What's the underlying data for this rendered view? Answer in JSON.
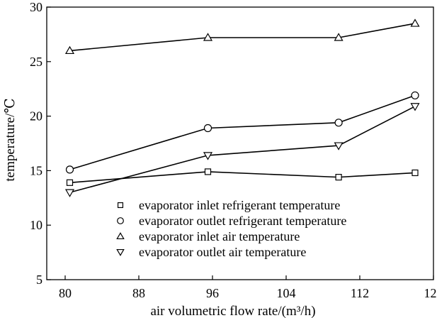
{
  "chart_data": {
    "type": "line",
    "xlabel": "air volumetric flow rate/(m³/h)",
    "ylabel": "temperature/℃",
    "xlim": [
      78,
      120
    ],
    "ylim": [
      5,
      30
    ],
    "xticks": [
      80,
      88,
      96,
      104,
      112,
      120
    ],
    "yticks": [
      5,
      10,
      15,
      20,
      25,
      30
    ],
    "x": [
      80.5,
      95.5,
      109.7,
      118
    ],
    "grid": false,
    "legend_position": "lower-right",
    "series": [
      {
        "name": "evaporator inlet refrigerant temperature",
        "marker": "square",
        "values": [
          13.9,
          14.9,
          14.4,
          14.8
        ]
      },
      {
        "name": "evaporator outlet refrigerant temperature",
        "marker": "circle",
        "values": [
          15.1,
          18.9,
          19.4,
          21.9
        ]
      },
      {
        "name": "evaporator inlet air temperature",
        "marker": "triangle-up",
        "values": [
          26.0,
          27.2,
          27.2,
          28.5
        ]
      },
      {
        "name": "evaporator outlet air temperature",
        "marker": "triangle-down",
        "values": [
          13.0,
          16.4,
          17.3,
          20.9
        ]
      }
    ]
  }
}
